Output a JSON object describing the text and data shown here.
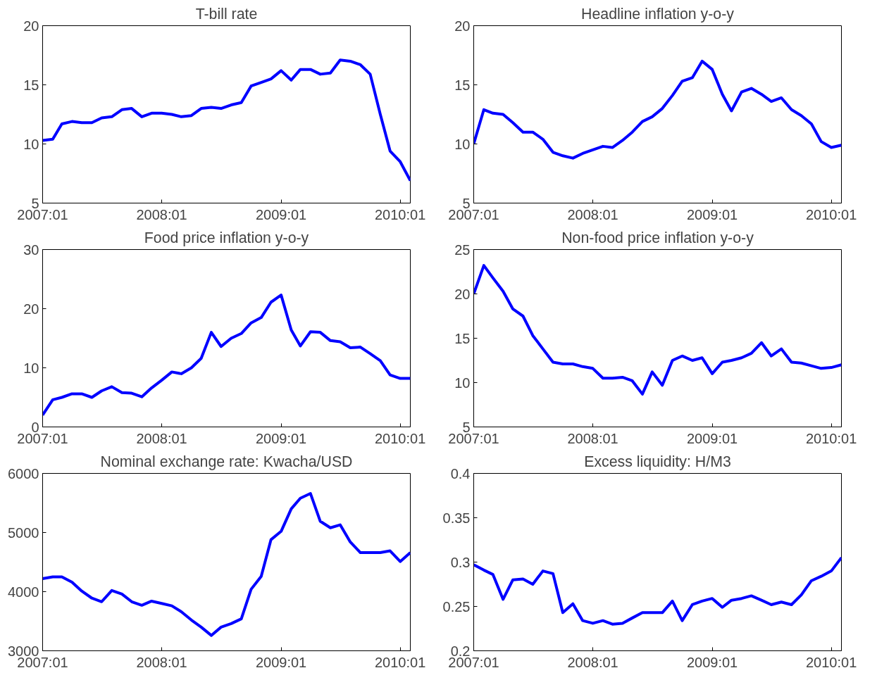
{
  "chart_data": [
    {
      "type": "line",
      "title": "T-bill rate",
      "x": [
        "2007-01",
        "2007-02",
        "2007-03",
        "2007-04",
        "2007-05",
        "2007-06",
        "2007-07",
        "2007-08",
        "2007-09",
        "2007-10",
        "2007-11",
        "2007-12",
        "2008-01",
        "2008-02",
        "2008-03",
        "2008-04",
        "2008-05",
        "2008-06",
        "2008-07",
        "2008-08",
        "2008-09",
        "2008-10",
        "2008-11",
        "2008-12",
        "2009-01",
        "2009-02",
        "2009-03",
        "2009-04",
        "2009-05",
        "2009-06",
        "2009-07",
        "2009-08",
        "2009-09",
        "2009-10",
        "2009-11",
        "2009-12",
        "2010-01",
        "2010-02"
      ],
      "series": [
        {
          "color": "#0000ff",
          "values": [
            10.3,
            10.4,
            11.7,
            11.9,
            11.8,
            11.8,
            12.2,
            12.3,
            12.9,
            13.0,
            12.3,
            12.6,
            12.6,
            12.5,
            12.3,
            12.4,
            13.0,
            13.1,
            13.0,
            13.3,
            13.5,
            14.9,
            15.2,
            15.5,
            16.2,
            15.4,
            16.3,
            16.3,
            15.9,
            16.0,
            17.1,
            17.0,
            16.7,
            15.9,
            12.5,
            9.4,
            8.5,
            6.9
          ]
        }
      ],
      "xlim": [
        "2007-01",
        "2010-02"
      ],
      "xticks": [
        {
          "value": "2007-01",
          "label": "2007:01"
        },
        {
          "value": "2008-01",
          "label": "2008:01"
        },
        {
          "value": "2009-01",
          "label": "2009:01"
        },
        {
          "value": "2010-01",
          "label": "2010:01"
        }
      ],
      "ylim": [
        5,
        20
      ],
      "yticks": [
        5,
        10,
        15,
        20
      ],
      "grid": false
    },
    {
      "type": "line",
      "title": "Headline inflation y-o-y",
      "x": [
        "2007-01",
        "2007-02",
        "2007-03",
        "2007-04",
        "2007-05",
        "2007-06",
        "2007-07",
        "2007-08",
        "2007-09",
        "2007-10",
        "2007-11",
        "2007-12",
        "2008-01",
        "2008-02",
        "2008-03",
        "2008-04",
        "2008-05",
        "2008-06",
        "2008-07",
        "2008-08",
        "2008-09",
        "2008-10",
        "2008-11",
        "2008-12",
        "2009-01",
        "2009-02",
        "2009-03",
        "2009-04",
        "2009-05",
        "2009-06",
        "2009-07",
        "2009-08",
        "2009-09",
        "2009-10",
        "2009-11",
        "2009-12",
        "2010-01",
        "2010-02"
      ],
      "series": [
        {
          "color": "#0000ff",
          "values": [
            10.0,
            12.9,
            12.6,
            12.5,
            11.8,
            11.0,
            11.0,
            10.4,
            9.3,
            9.0,
            8.8,
            9.2,
            9.5,
            9.8,
            9.7,
            10.3,
            11.0,
            11.9,
            12.3,
            13.0,
            14.1,
            15.3,
            15.6,
            17.0,
            16.3,
            14.2,
            12.8,
            14.4,
            14.7,
            14.2,
            13.6,
            13.9,
            12.9,
            12.4,
            11.7,
            10.2,
            9.7,
            9.9
          ]
        }
      ],
      "xlim": [
        "2007-01",
        "2010-02"
      ],
      "xticks": [
        {
          "value": "2007-01",
          "label": "2007:01"
        },
        {
          "value": "2008-01",
          "label": "2008:01"
        },
        {
          "value": "2009-01",
          "label": "2009:01"
        },
        {
          "value": "2010-01",
          "label": "2010:01"
        }
      ],
      "ylim": [
        5,
        20
      ],
      "yticks": [
        5,
        10,
        15,
        20
      ],
      "grid": false
    },
    {
      "type": "line",
      "title": "Food price inflation y-o-y",
      "x": [
        "2007-01",
        "2007-02",
        "2007-03",
        "2007-04",
        "2007-05",
        "2007-06",
        "2007-07",
        "2007-08",
        "2007-09",
        "2007-10",
        "2007-11",
        "2007-12",
        "2008-01",
        "2008-02",
        "2008-03",
        "2008-04",
        "2008-05",
        "2008-06",
        "2008-07",
        "2008-08",
        "2008-09",
        "2008-10",
        "2008-11",
        "2008-12",
        "2009-01",
        "2009-02",
        "2009-03",
        "2009-04",
        "2009-05",
        "2009-06",
        "2009-07",
        "2009-08",
        "2009-09",
        "2009-10",
        "2009-11",
        "2009-12",
        "2010-01",
        "2010-02"
      ],
      "series": [
        {
          "color": "#0000ff",
          "values": [
            2.0,
            4.6,
            5.0,
            5.6,
            5.6,
            5.0,
            6.1,
            6.8,
            5.8,
            5.7,
            5.1,
            6.6,
            7.9,
            9.3,
            9.0,
            10.0,
            11.6,
            16.0,
            13.6,
            15.0,
            15.8,
            17.6,
            18.5,
            21.1,
            22.3,
            16.4,
            13.7,
            16.1,
            16.0,
            14.6,
            14.4,
            13.4,
            13.5,
            12.4,
            11.2,
            8.8,
            8.2,
            8.2
          ]
        }
      ],
      "xlim": [
        "2007-01",
        "2010-02"
      ],
      "xticks": [
        {
          "value": "2007-01",
          "label": "2007:01"
        },
        {
          "value": "2008-01",
          "label": "2008:01"
        },
        {
          "value": "2009-01",
          "label": "2009:01"
        },
        {
          "value": "2010-01",
          "label": "2010:01"
        }
      ],
      "ylim": [
        0,
        30
      ],
      "yticks": [
        0,
        10,
        20,
        30
      ],
      "grid": false
    },
    {
      "type": "line",
      "title": "Non-food price inflation y-o-y",
      "x": [
        "2007-01",
        "2007-02",
        "2007-03",
        "2007-04",
        "2007-05",
        "2007-06",
        "2007-07",
        "2007-08",
        "2007-09",
        "2007-10",
        "2007-11",
        "2007-12",
        "2008-01",
        "2008-02",
        "2008-03",
        "2008-04",
        "2008-05",
        "2008-06",
        "2008-07",
        "2008-08",
        "2008-09",
        "2008-10",
        "2008-11",
        "2008-12",
        "2009-01",
        "2009-02",
        "2009-03",
        "2009-04",
        "2009-05",
        "2009-06",
        "2009-07",
        "2009-08",
        "2009-09",
        "2009-10",
        "2009-11",
        "2009-12",
        "2010-01",
        "2010-02"
      ],
      "series": [
        {
          "color": "#0000ff",
          "values": [
            20.0,
            23.2,
            21.8,
            20.3,
            18.3,
            17.5,
            15.3,
            13.8,
            12.3,
            12.1,
            12.1,
            11.8,
            11.6,
            10.5,
            10.5,
            10.6,
            10.2,
            8.7,
            11.2,
            9.7,
            12.5,
            13.0,
            12.5,
            12.8,
            11.0,
            12.3,
            12.5,
            12.8,
            13.3,
            14.5,
            13.0,
            13.8,
            12.3,
            12.2,
            11.9,
            11.6,
            11.7,
            12.0
          ]
        }
      ],
      "xlim": [
        "2007-01",
        "2010-02"
      ],
      "xticks": [
        {
          "value": "2007-01",
          "label": "2007:01"
        },
        {
          "value": "2008-01",
          "label": "2008:01"
        },
        {
          "value": "2009-01",
          "label": "2009:01"
        },
        {
          "value": "2010-01",
          "label": "2010:01"
        }
      ],
      "ylim": [
        5,
        25
      ],
      "yticks": [
        5,
        10,
        15,
        20,
        25
      ],
      "grid": false
    },
    {
      "type": "line",
      "title": "Nominal exchange rate: Kwacha/USD",
      "x": [
        "2007-01",
        "2007-02",
        "2007-03",
        "2007-04",
        "2007-05",
        "2007-06",
        "2007-07",
        "2007-08",
        "2007-09",
        "2007-10",
        "2007-11",
        "2007-12",
        "2008-01",
        "2008-02",
        "2008-03",
        "2008-04",
        "2008-05",
        "2008-06",
        "2008-07",
        "2008-08",
        "2008-09",
        "2008-10",
        "2008-11",
        "2008-12",
        "2009-01",
        "2009-02",
        "2009-03",
        "2009-04",
        "2009-05",
        "2009-06",
        "2009-07",
        "2009-08",
        "2009-09",
        "2009-10",
        "2009-11",
        "2009-12",
        "2010-01",
        "2010-02"
      ],
      "series": [
        {
          "color": "#0000ff",
          "values": [
            4220,
            4250,
            4250,
            4160,
            4010,
            3890,
            3830,
            4020,
            3960,
            3830,
            3770,
            3840,
            3800,
            3760,
            3660,
            3520,
            3400,
            3260,
            3400,
            3460,
            3540,
            4040,
            4260,
            4880,
            5020,
            5400,
            5580,
            5660,
            5190,
            5080,
            5130,
            4840,
            4660,
            4660,
            4660,
            4690,
            4510,
            4660
          ]
        }
      ],
      "xlim": [
        "2007-01",
        "2010-02"
      ],
      "xticks": [
        {
          "value": "2007-01",
          "label": "2007:01"
        },
        {
          "value": "2008-01",
          "label": "2008:01"
        },
        {
          "value": "2009-01",
          "label": "2009:01"
        },
        {
          "value": "2010-01",
          "label": "2010:01"
        }
      ],
      "ylim": [
        3000,
        6000
      ],
      "yticks": [
        3000,
        4000,
        5000,
        6000
      ],
      "grid": false
    },
    {
      "type": "line",
      "title": "Excess liquidity: H/M3",
      "x": [
        "2007-01",
        "2007-02",
        "2007-03",
        "2007-04",
        "2007-05",
        "2007-06",
        "2007-07",
        "2007-08",
        "2007-09",
        "2007-10",
        "2007-11",
        "2007-12",
        "2008-01",
        "2008-02",
        "2008-03",
        "2008-04",
        "2008-05",
        "2008-06",
        "2008-07",
        "2008-08",
        "2008-09",
        "2008-10",
        "2008-11",
        "2008-12",
        "2009-01",
        "2009-02",
        "2009-03",
        "2009-04",
        "2009-05",
        "2009-06",
        "2009-07",
        "2009-08",
        "2009-09",
        "2009-10",
        "2009-11",
        "2009-12",
        "2010-01",
        "2010-02"
      ],
      "series": [
        {
          "color": "#0000ff",
          "values": [
            0.297,
            0.291,
            0.286,
            0.258,
            0.28,
            0.281,
            0.275,
            0.29,
            0.287,
            0.243,
            0.253,
            0.234,
            0.231,
            0.234,
            0.23,
            0.231,
            0.237,
            0.243,
            0.243,
            0.243,
            0.256,
            0.234,
            0.252,
            0.256,
            0.259,
            0.249,
            0.257,
            0.259,
            0.262,
            0.257,
            0.252,
            0.255,
            0.252,
            0.263,
            0.279,
            0.284,
            0.29,
            0.305
          ]
        }
      ],
      "xlim": [
        "2007-01",
        "2010-02"
      ],
      "xticks": [
        {
          "value": "2007-01",
          "label": "2007:01"
        },
        {
          "value": "2008-01",
          "label": "2008:01"
        },
        {
          "value": "2009-01",
          "label": "2009:01"
        },
        {
          "value": "2010-01",
          "label": "2010:01"
        }
      ],
      "ylim": [
        0.2,
        0.4
      ],
      "yticks": [
        0.2,
        0.25,
        0.3,
        0.35,
        0.4
      ],
      "grid": false
    }
  ]
}
